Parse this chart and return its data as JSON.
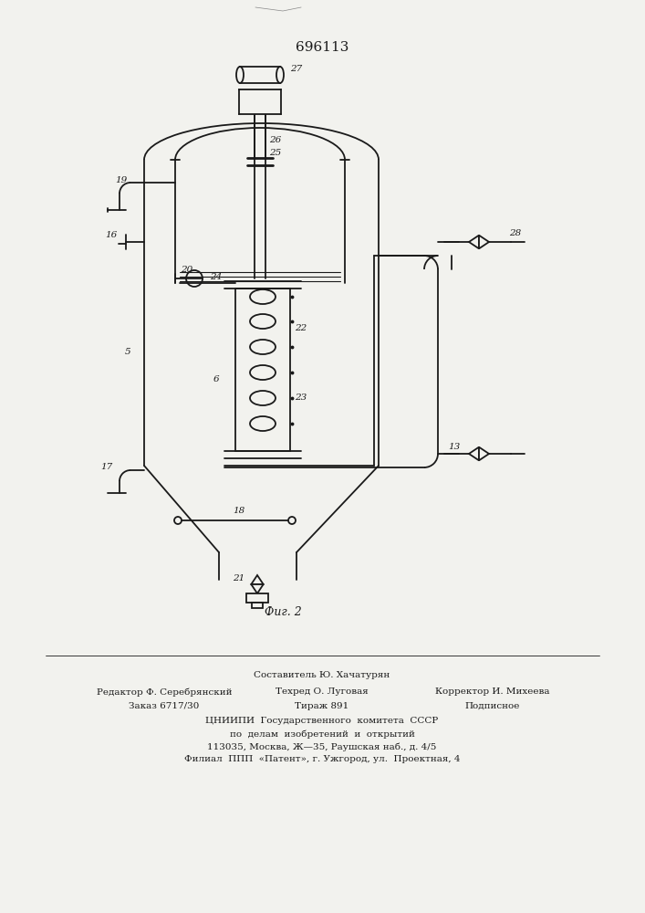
{
  "title": "696113",
  "fig_label": "Фиг. 2",
  "background_color": "#f2f2ee",
  "line_color": "#1a1a1a",
  "line_width": 1.3,
  "footer": {
    "line1_center": "Составитель Ю. Хачатурян",
    "line2_left": "Редактор Ф. Серебрянский",
    "line2_center": "Техред О. Луговая",
    "line2_right": "Корректор И. Михеева",
    "line3_left": "Заказ 6717/30",
    "line3_center": "Тираж 891",
    "line3_right": "Подписное",
    "line4": "ЦНИИПИ  Государственного  комитета  СССР",
    "line5": "по  делам  изобретений  и  открытий",
    "line6": "113035, Москва, Ж—35, Раушская наб., д. 4/5",
    "line7": "Филиал  ППП  «Патент», г. Ужгород, ул.  Проектная, 4"
  }
}
